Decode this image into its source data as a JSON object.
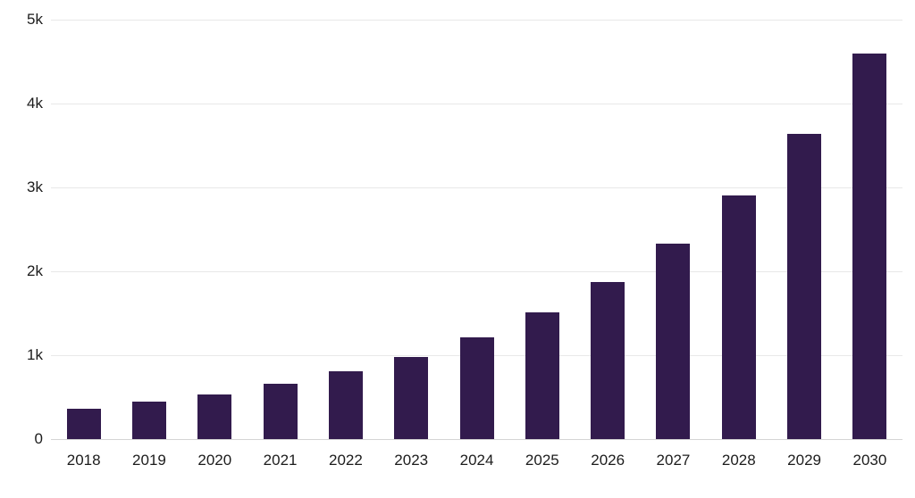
{
  "chart_data": {
    "type": "bar",
    "title": "",
    "xlabel": "",
    "ylabel": "",
    "categories": [
      "2018",
      "2019",
      "2020",
      "2021",
      "2022",
      "2023",
      "2024",
      "2025",
      "2026",
      "2027",
      "2028",
      "2029",
      "2030"
    ],
    "values": [
      360,
      450,
      530,
      660,
      810,
      980,
      1210,
      1510,
      1870,
      2330,
      2900,
      3640,
      4600
    ],
    "ylim": [
      0,
      5000
    ],
    "ytick_values": [
      0,
      1000,
      2000,
      3000,
      4000,
      5000
    ],
    "ytick_labels": [
      "0",
      "1k",
      "2k",
      "3k",
      "4k",
      "5k"
    ],
    "grid": "horizontal",
    "legend": "none",
    "colors": {
      "bar": "#321b4d",
      "gridline": "#e8e8e8",
      "baseline": "#d4d4d4",
      "text": "#1c1c1c",
      "background": "#ffffff"
    }
  }
}
